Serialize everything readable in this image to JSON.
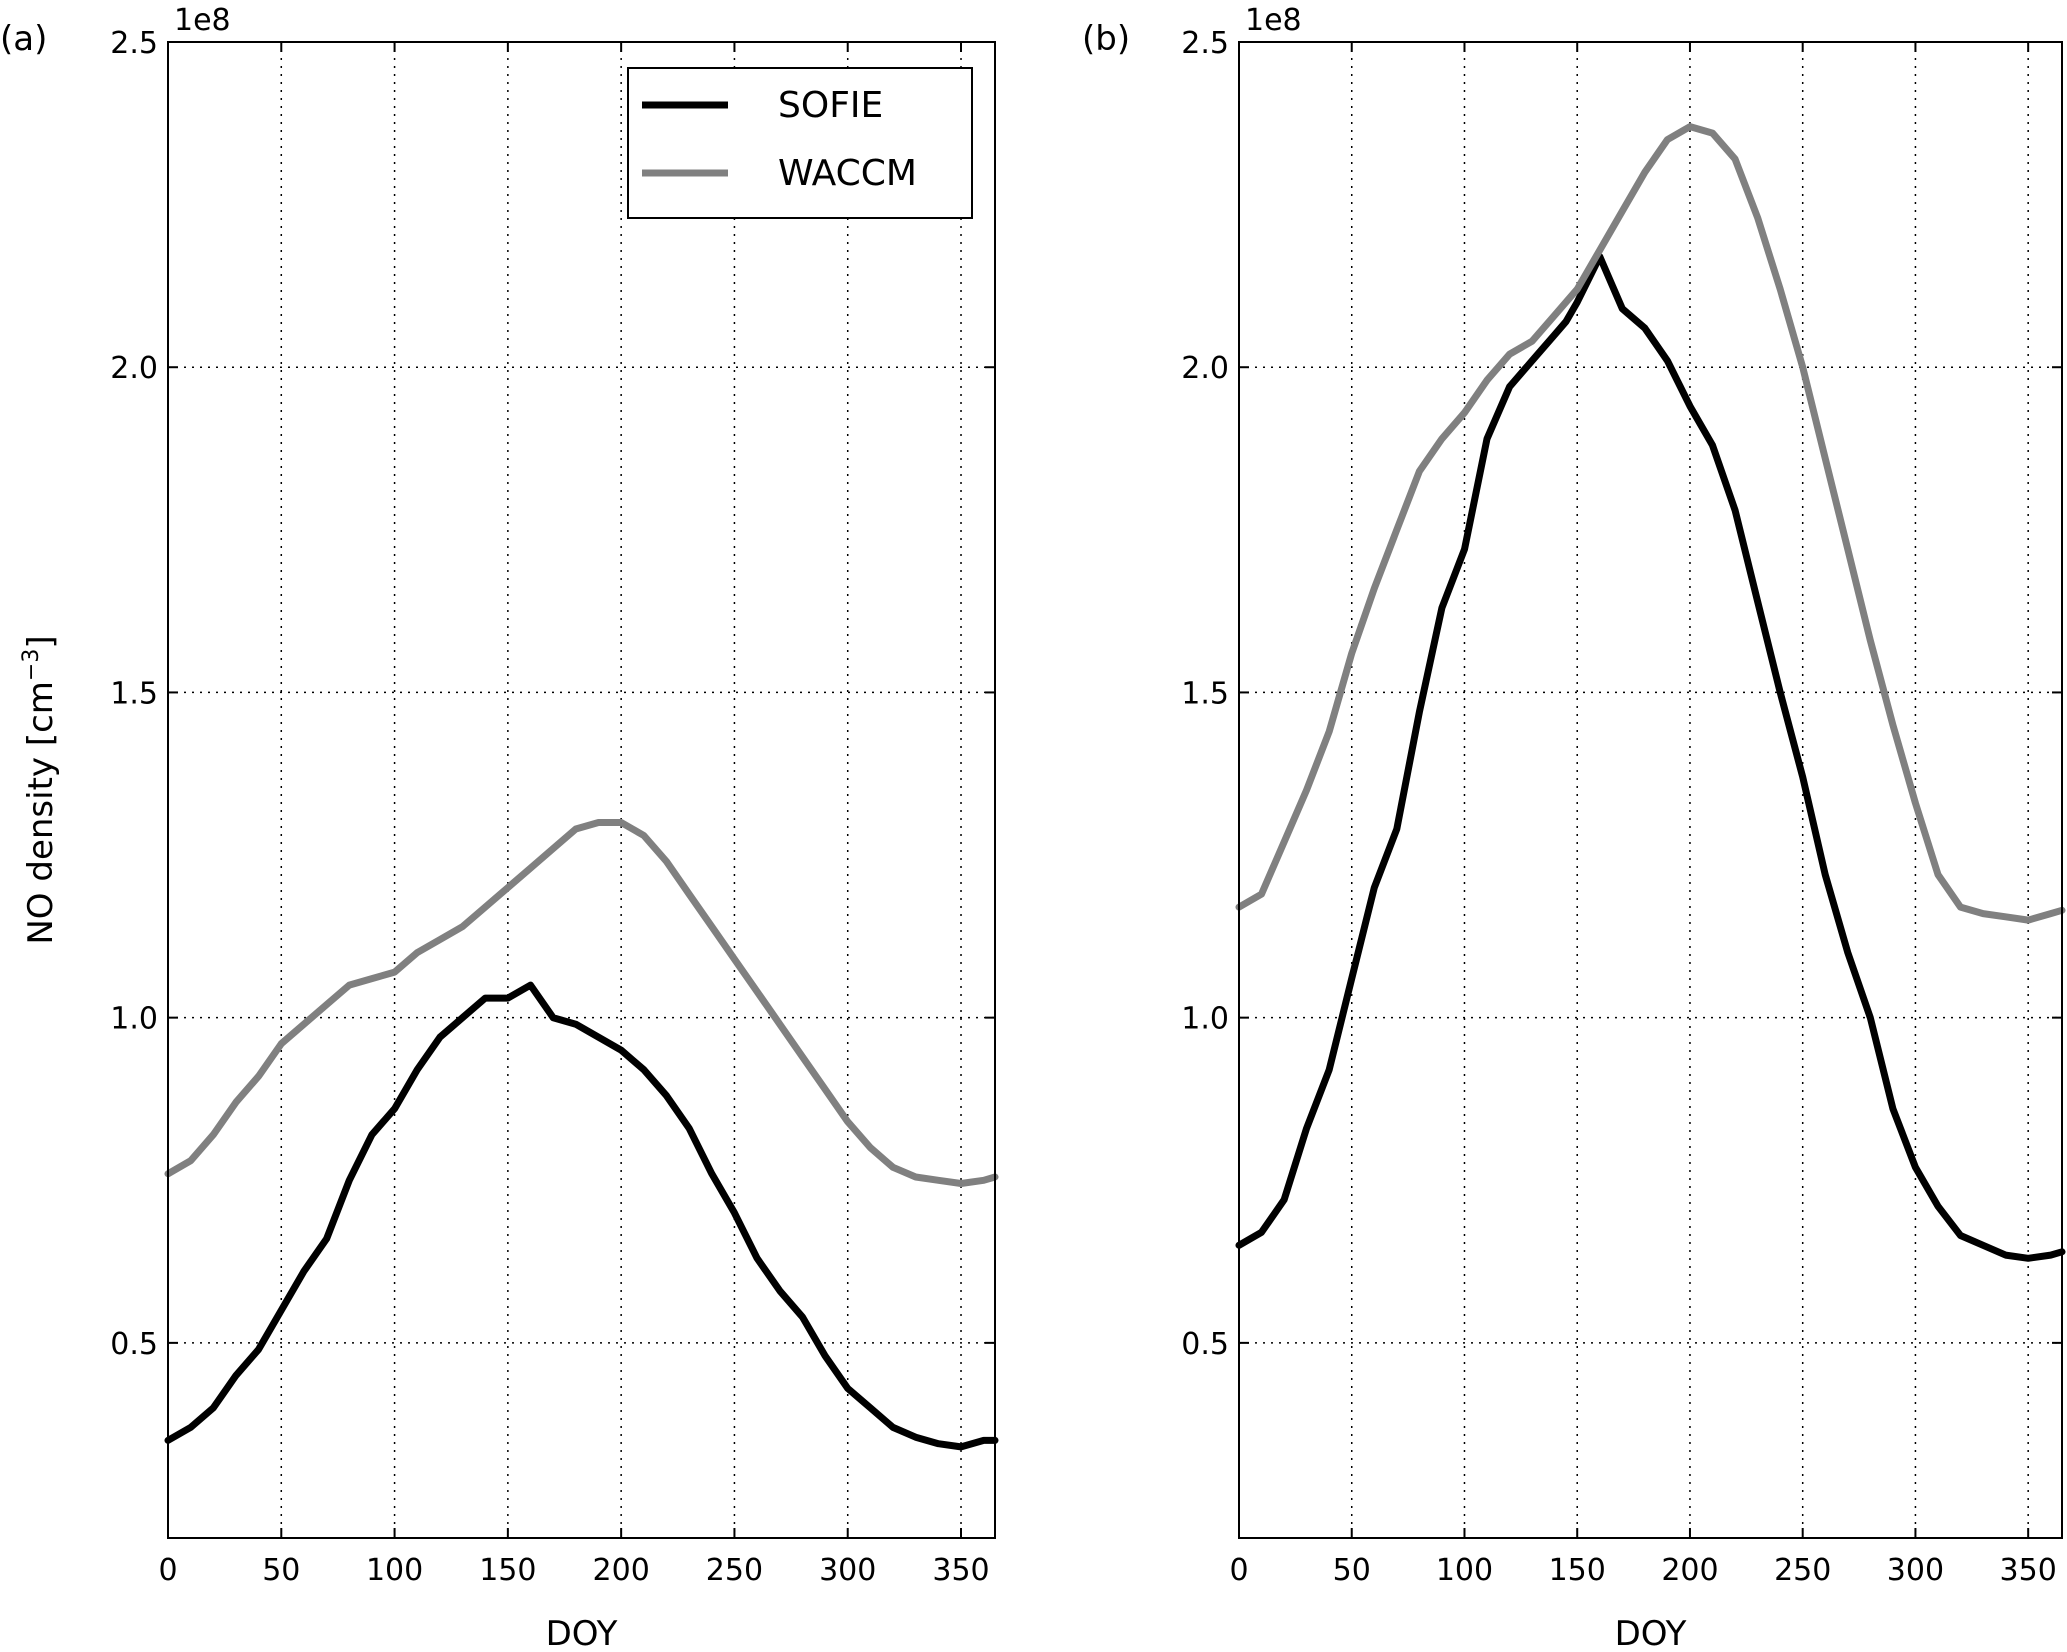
{
  "chart_data": [
    {
      "type": "line",
      "panel_label": "(a)",
      "xlabel": "DOY",
      "ylabel": "NO density [cm",
      "ylabel_sup": "−3",
      "ylabel_close": "]",
      "y_offset_label": "1e8",
      "xlim": [
        0,
        365
      ],
      "ylim": [
        0.2,
        2.5
      ],
      "x_ticks": [
        "0",
        "50",
        "100",
        "150",
        "200",
        "250",
        "300",
        "350"
      ],
      "y_ticks": [
        "0.5",
        "1.0",
        "1.5",
        "2.0",
        "2.5"
      ],
      "grid": true,
      "legend": {
        "placement": "top-right",
        "entries": [
          "SOFIE",
          "WACCM"
        ]
      },
      "series": [
        {
          "name": "SOFIE",
          "color": "#000000",
          "x": [
            0,
            10,
            20,
            30,
            40,
            50,
            60,
            70,
            80,
            90,
            100,
            110,
            120,
            130,
            140,
            150,
            160,
            170,
            180,
            190,
            200,
            210,
            220,
            230,
            240,
            250,
            260,
            270,
            280,
            290,
            300,
            310,
            320,
            330,
            340,
            350,
            360,
            365
          ],
          "y": [
            0.35,
            0.37,
            0.4,
            0.45,
            0.49,
            0.55,
            0.61,
            0.66,
            0.75,
            0.82,
            0.86,
            0.92,
            0.97,
            1.0,
            1.03,
            1.03,
            1.05,
            1.0,
            0.99,
            0.97,
            0.95,
            0.92,
            0.88,
            0.83,
            0.76,
            0.7,
            0.63,
            0.58,
            0.54,
            0.48,
            0.43,
            0.4,
            0.37,
            0.355,
            0.345,
            0.34,
            0.35,
            0.35
          ]
        },
        {
          "name": "WACCM",
          "color": "#808080",
          "x": [
            0,
            10,
            20,
            30,
            40,
            50,
            60,
            70,
            80,
            90,
            100,
            110,
            120,
            130,
            140,
            150,
            160,
            170,
            180,
            190,
            200,
            210,
            220,
            230,
            240,
            250,
            260,
            270,
            280,
            290,
            300,
            310,
            320,
            330,
            340,
            350,
            360,
            365
          ],
          "y": [
            0.76,
            0.78,
            0.82,
            0.87,
            0.91,
            0.96,
            0.99,
            1.02,
            1.05,
            1.06,
            1.07,
            1.1,
            1.12,
            1.14,
            1.17,
            1.2,
            1.23,
            1.26,
            1.29,
            1.3,
            1.3,
            1.28,
            1.24,
            1.19,
            1.14,
            1.09,
            1.04,
            0.99,
            0.94,
            0.89,
            0.84,
            0.8,
            0.77,
            0.755,
            0.75,
            0.745,
            0.75,
            0.755
          ]
        }
      ]
    },
    {
      "type": "line",
      "panel_label": "(b)",
      "xlabel": "DOY",
      "y_offset_label": "1e8",
      "xlim": [
        0,
        365
      ],
      "ylim": [
        0.2,
        2.5
      ],
      "x_ticks": [
        "0",
        "50",
        "100",
        "150",
        "200",
        "250",
        "300",
        "350"
      ],
      "y_ticks": [
        "0.5",
        "1.0",
        "1.5",
        "2.0",
        "2.5"
      ],
      "grid": true,
      "series": [
        {
          "name": "SOFIE",
          "color": "#000000",
          "x": [
            0,
            10,
            20,
            30,
            40,
            50,
            60,
            70,
            80,
            90,
            100,
            110,
            120,
            130,
            140,
            145,
            150,
            160,
            170,
            180,
            190,
            200,
            210,
            220,
            230,
            240,
            250,
            260,
            270,
            280,
            290,
            300,
            310,
            320,
            330,
            340,
            350,
            360,
            365
          ],
          "y": [
            0.65,
            0.67,
            0.72,
            0.83,
            0.92,
            1.06,
            1.2,
            1.29,
            1.47,
            1.63,
            1.72,
            1.89,
            1.97,
            2.01,
            2.05,
            2.07,
            2.1,
            2.17,
            2.09,
            2.06,
            2.01,
            1.94,
            1.88,
            1.78,
            1.64,
            1.5,
            1.37,
            1.22,
            1.1,
            1.0,
            0.86,
            0.77,
            0.71,
            0.665,
            0.65,
            0.635,
            0.63,
            0.635,
            0.64
          ]
        },
        {
          "name": "WACCM",
          "color": "#808080",
          "x": [
            0,
            10,
            20,
            30,
            40,
            50,
            60,
            70,
            80,
            90,
            100,
            110,
            120,
            130,
            140,
            150,
            160,
            170,
            180,
            190,
            200,
            210,
            220,
            230,
            240,
            250,
            260,
            270,
            280,
            290,
            300,
            310,
            320,
            330,
            340,
            350,
            360,
            365
          ],
          "y": [
            1.17,
            1.19,
            1.27,
            1.35,
            1.44,
            1.56,
            1.66,
            1.75,
            1.84,
            1.89,
            1.93,
            1.98,
            2.02,
            2.04,
            2.08,
            2.12,
            2.18,
            2.24,
            2.3,
            2.35,
            2.37,
            2.36,
            2.32,
            2.23,
            2.12,
            2.0,
            1.86,
            1.72,
            1.58,
            1.45,
            1.33,
            1.22,
            1.17,
            1.16,
            1.155,
            1.15,
            1.16,
            1.165
          ]
        }
      ]
    }
  ]
}
